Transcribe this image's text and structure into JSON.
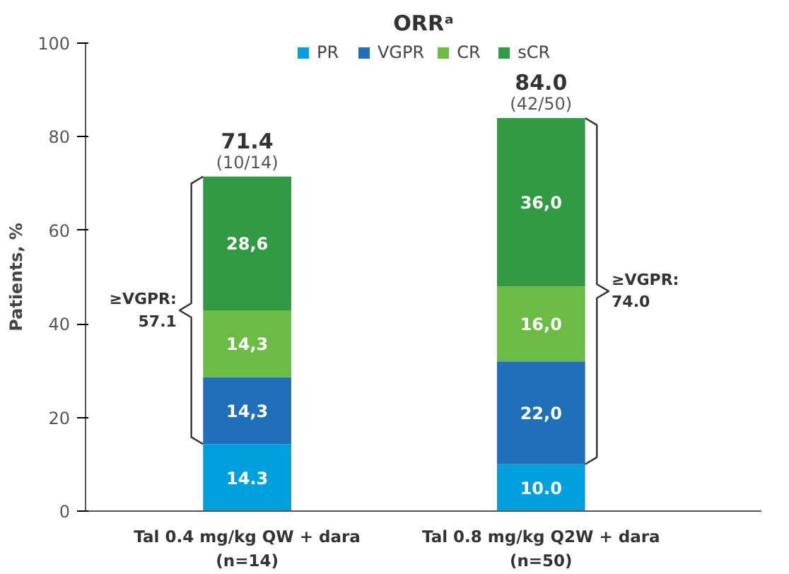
{
  "chart_data": {
    "type": "bar",
    "stacked": true,
    "title": "ORRᵃ",
    "ylabel": "Patients, %",
    "categories": [
      "Tal 0.4 mg/kg QW + dara\n(n=14)",
      "Tal 0.8 mg/kg Q2W + dara\n(n=50)"
    ],
    "series": [
      {
        "name": "PR",
        "color": "#00a0dc",
        "values": [
          14.3,
          10.0
        ],
        "value_labels": [
          "14.3",
          "10.0"
        ]
      },
      {
        "name": "VGPR",
        "color": "#1f6fb9",
        "values": [
          14.3,
          22.0
        ],
        "value_labels": [
          "14,3",
          "22,0"
        ]
      },
      {
        "name": "CR",
        "color": "#6cbb45",
        "values": [
          14.3,
          16.0
        ],
        "value_labels": [
          "14,3",
          "16,0"
        ]
      },
      {
        "name": "sCR",
        "color": "#339a44",
        "values": [
          28.6,
          36.0
        ],
        "value_labels": [
          "28,6",
          "36,0"
        ]
      }
    ],
    "totals": [
      "71.4\n(10/14)",
      "84.0\n(42/50)"
    ],
    "annotations": [
      "≥VGPR:\n57.1",
      "≥VGPR:\n74.0"
    ],
    "ylim": [
      0,
      100
    ],
    "yticks": [
      0,
      20,
      40,
      60,
      80,
      100
    ],
    "grid": false,
    "legend": "top"
  }
}
